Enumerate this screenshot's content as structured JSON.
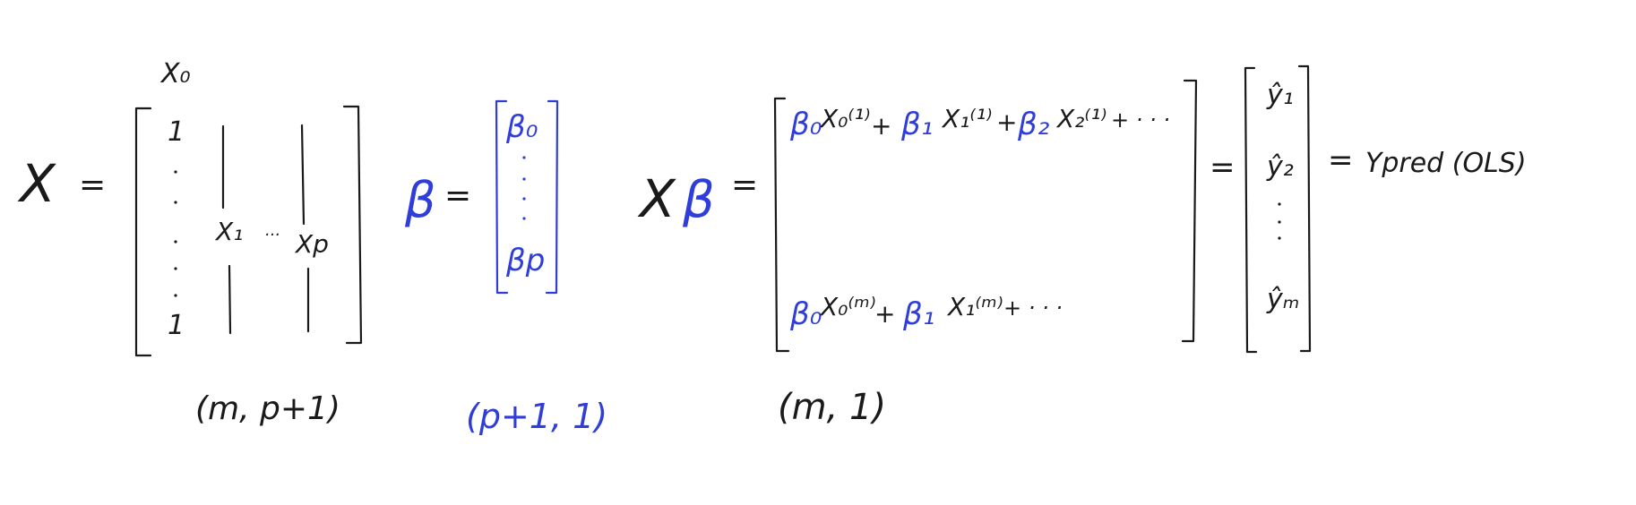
{
  "matrix_x": {
    "name": "X",
    "eq": "=",
    "col_header": "X₀",
    "first_entry": "1",
    "last_entry": "1",
    "col_1": "X₁",
    "col_dots": "···",
    "col_p": "Xp",
    "dims": "(m, p+1)"
  },
  "vector_beta": {
    "name": "β",
    "eq": "=",
    "top": "β₀",
    "bottom": "βp",
    "dims": "(p+1, 1)"
  },
  "product": {
    "lhs_x": "X",
    "lhs_beta": "β",
    "eq": "=",
    "row1": {
      "b0": "β₀",
      "x0": "X₀⁽¹⁾",
      "plus1": "+",
      "b1": "β₁",
      "x1": "X₁⁽¹⁾",
      "plus2": "+",
      "b2": "β₂",
      "x2": "X₂⁽¹⁾",
      "tail": "+ · · ·"
    },
    "rowm": {
      "b0": "β₀",
      "x0": "X₀⁽ᵐ⁾",
      "plus1": "+",
      "b1": "β₁",
      "x1": "X₁⁽ᵐ⁾",
      "tail": "+ · · ·"
    },
    "dims": "(m, 1)"
  },
  "result": {
    "eq": "=",
    "y1": "ŷ₁",
    "y2": "ŷ₂",
    "ym": "ŷₘ",
    "eq2": "=",
    "label": "Ypred (OLS)"
  },
  "colors": {
    "ink": "#1a1a1a",
    "blue": "#2f3ddb"
  }
}
